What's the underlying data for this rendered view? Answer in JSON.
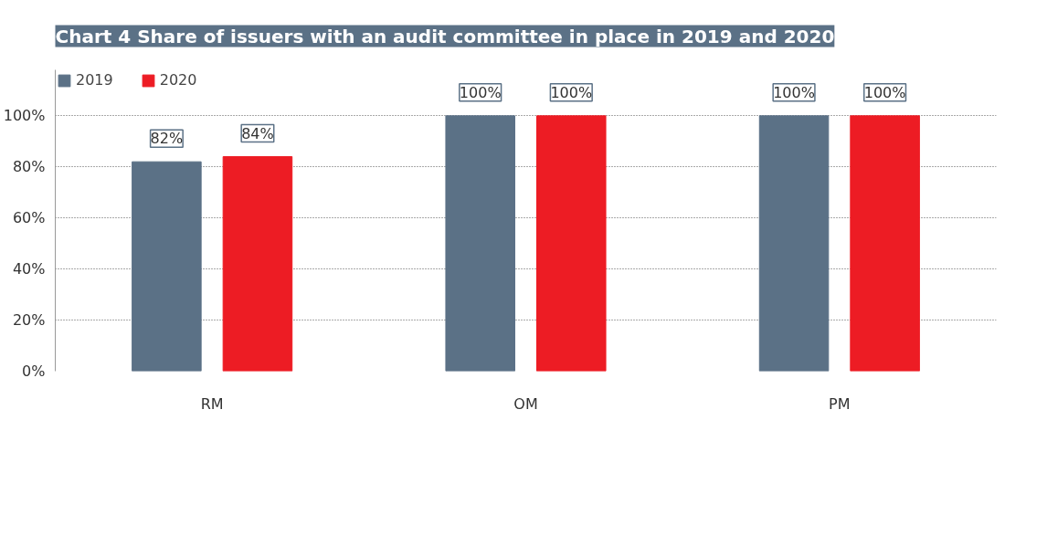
{
  "chart_data": {
    "type": "bar",
    "title": "Chart 4 Share of issuers with an audit committee in place in 2019 and 2020",
    "categories": [
      "RM",
      "OM",
      "PM"
    ],
    "series": [
      {
        "name": "2019",
        "color": "#5b7186",
        "values": [
          82,
          100,
          100
        ],
        "value_labels": [
          "82%",
          "100%",
          "100%"
        ]
      },
      {
        "name": "2020",
        "color": "#ed1c24",
        "values": [
          84,
          100,
          100
        ],
        "value_labels": [
          "84%",
          "100%",
          "100%"
        ]
      }
    ],
    "ylim": [
      0,
      118
    ],
    "yticks": [
      {
        "value": 0,
        "label": "0%"
      },
      {
        "value": 20,
        "label": "20%"
      },
      {
        "value": 40,
        "label": "40%"
      },
      {
        "value": 60,
        "label": "60%"
      },
      {
        "value": 80,
        "label": "80%"
      },
      {
        "value": 100,
        "label": "100%"
      }
    ],
    "grid": "y",
    "legend": "top left"
  }
}
